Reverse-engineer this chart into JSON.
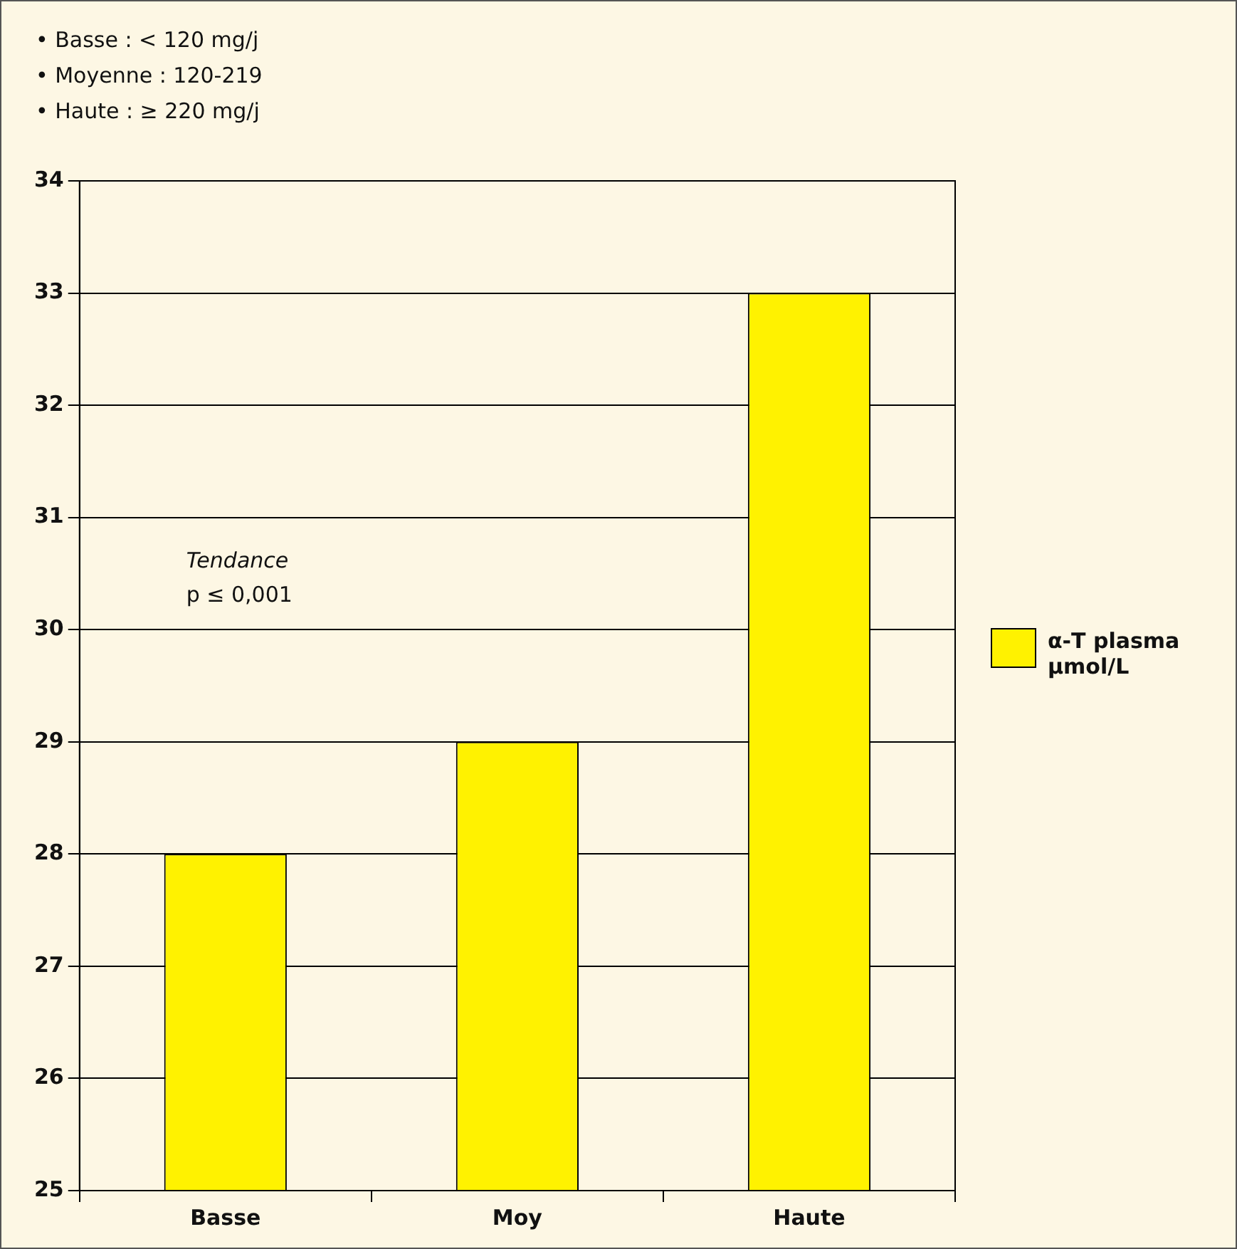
{
  "chart_data": {
    "type": "bar",
    "categories": [
      "Basse",
      "Moy",
      "Haute"
    ],
    "series": [
      {
        "name": "α-T plasma µmol/L",
        "color": "#fff200",
        "values": [
          28,
          29,
          33
        ]
      }
    ],
    "ylim": [
      25,
      34
    ],
    "yticks": [
      25,
      26,
      27,
      28,
      29,
      30,
      31,
      32,
      33,
      34
    ],
    "grid": "y",
    "legend": "right",
    "annotations": [
      "• Basse : < 120 mg/j",
      "• Moyenne : 120-219",
      "• Haute : ≥ 220 mg/j",
      "Tendance p ≤ 0,001"
    ]
  }
}
